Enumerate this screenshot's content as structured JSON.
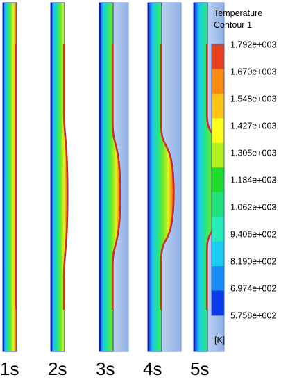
{
  "legend": {
    "title": "Temperature",
    "subtitle": "Contour 1",
    "unit": "[K]",
    "levels": [
      "1.792e+003",
      "1.670e+003",
      "1.548e+003",
      "1.427e+003",
      "1.305e+003",
      "1.184e+003",
      "1.062e+003",
      "9.406e+002",
      "8.190e+002",
      "6.974e+002",
      "5.758e+002"
    ],
    "colors": [
      "#e8401c",
      "#ff8a10",
      "#ffc414",
      "#ffff1a",
      "#b4f01e",
      "#1fdc2c",
      "#22e07a",
      "#26ecb8",
      "#1ccdf2",
      "#1a8cf5",
      "#0a3cec"
    ]
  },
  "panels": [
    {
      "label": "1s"
    },
    {
      "label": "2s"
    },
    {
      "label": "3s"
    },
    {
      "label": "4s"
    },
    {
      "label": "5s"
    }
  ]
}
